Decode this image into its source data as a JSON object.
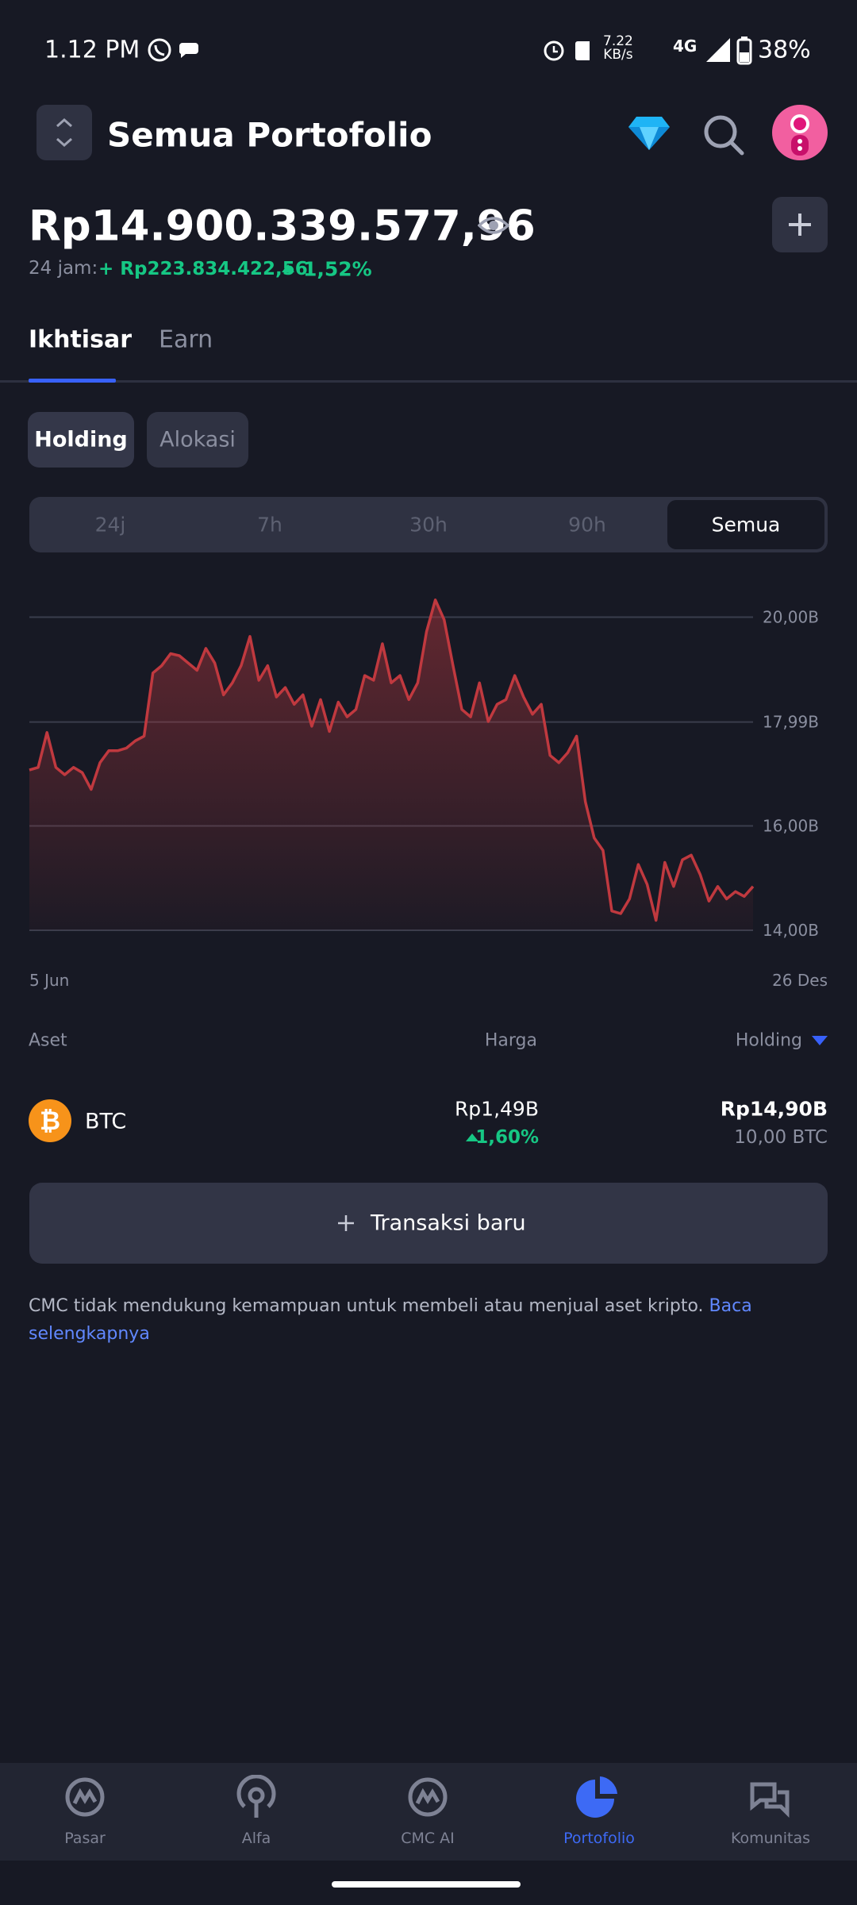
{
  "status_bar": {
    "time": "1.12 PM",
    "network_speed": "7.22",
    "speed_unit": "KB/s",
    "network": "4G",
    "battery": "38%"
  },
  "header": {
    "title": "Semua Portofolio"
  },
  "balance": {
    "total": "Rp14.900.339.577,96",
    "change_label": "24 jam:",
    "change_value": "+ Rp223.834.422,56",
    "change_percent": "1,52%"
  },
  "tabs": [
    "Ikhtisar",
    "Earn"
  ],
  "view_toggle": [
    "Holding",
    "Alokasi"
  ],
  "time_ranges": [
    "24j",
    "7h",
    "30h",
    "90h",
    "Semua"
  ],
  "chart_data": {
    "type": "area",
    "color": "#c0393f",
    "grid": true,
    "ylim": [
      14,
      20.6
    ],
    "yticks": [
      {
        "value": 14,
        "label": "14,00B"
      },
      {
        "value": 16,
        "label": "16,00B"
      },
      {
        "value": 17.99,
        "label": "17,99B"
      },
      {
        "value": 20,
        "label": "20,00B"
      }
    ],
    "categories": [
      "5 Jun",
      null,
      null,
      null,
      null,
      null,
      null,
      null,
      null,
      null,
      null,
      null,
      null,
      null,
      null,
      null,
      null,
      null,
      null,
      null,
      null,
      null,
      null,
      null,
      null,
      null,
      null,
      null,
      null,
      null,
      null,
      null,
      null,
      null,
      null,
      null,
      null,
      null,
      null,
      null,
      null,
      null,
      null,
      null,
      null,
      null,
      null,
      null,
      null,
      null,
      null,
      null,
      null,
      null,
      null,
      null,
      null,
      null,
      null,
      null,
      null,
      null,
      null,
      null,
      null,
      null,
      null,
      null,
      null,
      null,
      null,
      null,
      null,
      null,
      null,
      null,
      null,
      null,
      null,
      null,
      null,
      null,
      "26 Des"
    ],
    "values": [
      17.07,
      17.12,
      17.79,
      17.12,
      16.98,
      17.12,
      17.02,
      16.7,
      17.21,
      17.44,
      17.44,
      17.49,
      17.63,
      17.72,
      18.93,
      19.07,
      19.3,
      19.26,
      19.12,
      18.98,
      19.4,
      19.12,
      18.51,
      18.74,
      19.07,
      19.63,
      18.79,
      19.07,
      18.47,
      18.65,
      18.33,
      18.51,
      17.91,
      18.42,
      17.81,
      18.37,
      18.09,
      18.23,
      18.88,
      18.79,
      19.49,
      18.74,
      18.88,
      18.42,
      18.74,
      19.72,
      20.33,
      19.95,
      19.07,
      18.23,
      18.09,
      18.74,
      18.0,
      18.33,
      18.42,
      18.88,
      18.47,
      18.14,
      18.33,
      17.35,
      17.21,
      17.4,
      17.72,
      16.46,
      15.77,
      15.53,
      14.37,
      14.32,
      14.6,
      15.26,
      14.88,
      14.19,
      15.3,
      14.84,
      15.35,
      15.44,
      15.07,
      14.56,
      14.84,
      14.6,
      14.74,
      14.65,
      14.84
    ]
  },
  "table": {
    "headers": [
      "Aset",
      "Harga",
      "Holding"
    ],
    "rows": [
      {
        "asset": "BTC",
        "price": "Rp1,49B",
        "price_change": "1,60%",
        "holding_value": "Rp14,90B",
        "holding_amount": "10,00 BTC"
      }
    ]
  },
  "button": "Transaksi baru",
  "disclaimer": {
    "text": "CMC tidak mendukung kemampuan untuk membeli atau menjual aset kripto.",
    "link": "Baca selengkapnya"
  },
  "nav": [
    "Pasar",
    "Alfa",
    "CMC AI",
    "Portofolio",
    "Komunitas"
  ]
}
